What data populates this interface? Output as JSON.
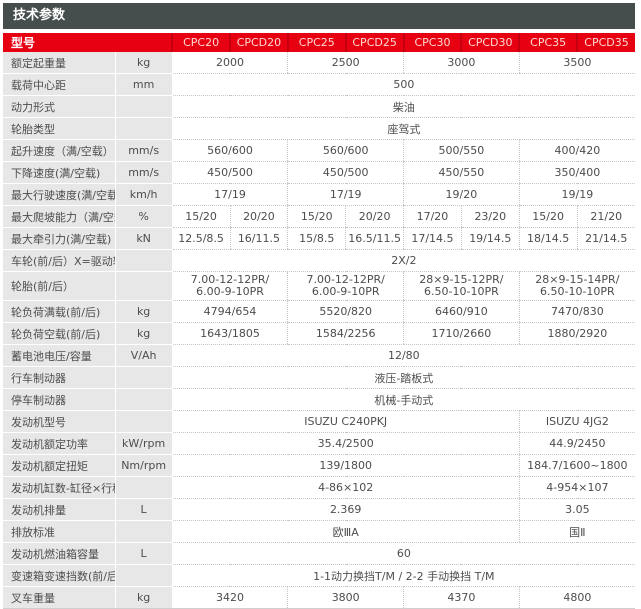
{
  "page": {
    "title": "技术参数"
  },
  "colors": {
    "accent_red": "#e60012",
    "header_dark": "#454d4d",
    "label_bg": "#e7e7e7",
    "model_text": "#ffd9d0"
  },
  "table": {
    "header": {
      "model_label": "型号",
      "models": [
        "CPC20",
        "CPCD20",
        "CPC25",
        "CPCD25",
        "CPC30",
        "CPCD30",
        "CPC35",
        "CPCD35"
      ]
    },
    "rows": [
      {
        "label": "额定起重量",
        "unit": "kg",
        "cells": [
          {
            "text": "2000",
            "span": 2
          },
          {
            "text": "2500",
            "span": 2
          },
          {
            "text": "3000",
            "span": 2
          },
          {
            "text": "3500",
            "span": 2
          }
        ]
      },
      {
        "label": "载荷中心距",
        "unit": "mm",
        "cells": [
          {
            "text": "500",
            "span": 8
          }
        ]
      },
      {
        "label": "动力形式",
        "unit": "",
        "cells": [
          {
            "text": "柴油",
            "span": 8
          }
        ]
      },
      {
        "label": "轮胎类型",
        "unit": "",
        "cells": [
          {
            "text": "座驾式",
            "span": 8
          }
        ]
      },
      {
        "label": "起升速度（满/空载）",
        "unit": "mm/s",
        "cells": [
          {
            "text": "560/600",
            "span": 2
          },
          {
            "text": "560/600",
            "span": 2
          },
          {
            "text": "500/550",
            "span": 2
          },
          {
            "text": "400/420",
            "span": 2
          }
        ]
      },
      {
        "label": "下降速度(满/空载)",
        "unit": "mm/s",
        "cells": [
          {
            "text": "450/500",
            "span": 2
          },
          {
            "text": "450/500",
            "span": 2
          },
          {
            "text": "450/550",
            "span": 2
          },
          {
            "text": "350/400",
            "span": 2
          }
        ]
      },
      {
        "label": "最大行驶速度(满/空载)",
        "unit": "km/h",
        "cells": [
          {
            "text": "17/19",
            "span": 2
          },
          {
            "text": "17/19",
            "span": 2
          },
          {
            "text": "19/20",
            "span": 2
          },
          {
            "text": "19/19",
            "span": 2
          }
        ]
      },
      {
        "label": "最大爬坡能力（满/空载)",
        "unit": "%",
        "cells": [
          {
            "text": "15/20",
            "span": 1
          },
          {
            "text": "20/20",
            "span": 1
          },
          {
            "text": "15/20",
            "span": 1
          },
          {
            "text": "20/20",
            "span": 1
          },
          {
            "text": "17/20",
            "span": 1
          },
          {
            "text": "23/20",
            "span": 1
          },
          {
            "text": "15/20",
            "span": 1
          },
          {
            "text": "21/20",
            "span": 1
          }
        ]
      },
      {
        "label": "最大牵引力(满/空载)",
        "unit": "kN",
        "cells": [
          {
            "text": "12.5/8.5",
            "span": 1
          },
          {
            "text": "16/11.5",
            "span": 1
          },
          {
            "text": "15/8.5",
            "span": 1
          },
          {
            "text": "16.5/11.5",
            "span": 1
          },
          {
            "text": "17/14.5",
            "span": 1
          },
          {
            "text": "19/14.5",
            "span": 1
          },
          {
            "text": "18/14.5",
            "span": 1
          },
          {
            "text": "21/14.5",
            "span": 1
          }
        ]
      },
      {
        "label": "车轮(前/后）X=驱动轮",
        "unit": "",
        "cells": [
          {
            "text": "2X/2",
            "span": 8
          }
        ]
      },
      {
        "label": "轮胎(前/后）",
        "unit": "",
        "cells": [
          {
            "text": "7.00-12-12PR/\n6.00-9-10PR",
            "span": 2
          },
          {
            "text": "7.00-12-12PR/\n6.00-9-10PR",
            "span": 2
          },
          {
            "text": "28×9-15-12PR/\n6.50-10-10PR",
            "span": 2
          },
          {
            "text": "28×9-15-14PR/\n6.50-10-10PR",
            "span": 2
          }
        ]
      },
      {
        "label": "轮负荷满载(前/后)",
        "unit": "kg",
        "cells": [
          {
            "text": "4794/654",
            "span": 2
          },
          {
            "text": "5520/820",
            "span": 2
          },
          {
            "text": "6460/910",
            "span": 2
          },
          {
            "text": "7470/830",
            "span": 2
          }
        ]
      },
      {
        "label": "轮负荷空载(前/后)",
        "unit": "kg",
        "cells": [
          {
            "text": "1643/1805",
            "span": 2
          },
          {
            "text": "1584/2256",
            "span": 2
          },
          {
            "text": "1710/2660",
            "span": 2
          },
          {
            "text": "1880/2920",
            "span": 2
          }
        ]
      },
      {
        "label": "蓄电池电压/容量",
        "unit": "V/Ah",
        "cells": [
          {
            "text": "12/80",
            "span": 8
          }
        ]
      },
      {
        "label": "行车制动器",
        "unit": "",
        "cells": [
          {
            "text": "液压-踏板式",
            "span": 8
          }
        ]
      },
      {
        "label": "停车制动器",
        "unit": "",
        "cells": [
          {
            "text": "机械-手动式",
            "span": 8
          }
        ]
      },
      {
        "label": "发动机型号",
        "unit": "",
        "cells": [
          {
            "text": "ISUZU C240PKJ",
            "span": 6
          },
          {
            "text": "ISUZU 4JG2",
            "span": 2
          }
        ]
      },
      {
        "label": "发动机额定功率",
        "unit": "kW/rpm",
        "cells": [
          {
            "text": "35.4/2500",
            "span": 6
          },
          {
            "text": "44.9/2450",
            "span": 2
          }
        ]
      },
      {
        "label": "发动机额定扭矩",
        "unit": "Nm/rpm",
        "cells": [
          {
            "text": "139/1800",
            "span": 6
          },
          {
            "text": "184.7/1600~1800",
            "span": 2
          }
        ]
      },
      {
        "label": "发动机缸数-缸径×行程",
        "unit": "",
        "cells": [
          {
            "text": "4-86×102",
            "span": 6
          },
          {
            "text": "4-954×107",
            "span": 2
          }
        ]
      },
      {
        "label": "发动机排量",
        "unit": "L",
        "cells": [
          {
            "text": "2.369",
            "span": 6
          },
          {
            "text": "3.05",
            "span": 2
          }
        ]
      },
      {
        "label": "排放标准",
        "unit": "",
        "cells": [
          {
            "text": "欧ⅢA",
            "span": 6
          },
          {
            "text": "国Ⅱ",
            "span": 2
          }
        ]
      },
      {
        "label": "发动机燃油箱容量",
        "unit": "L",
        "cells": [
          {
            "text": "60",
            "span": 8
          }
        ]
      },
      {
        "label": "变速箱变速挡数(前/后 型式)",
        "unit": "",
        "cells": [
          {
            "text": "1-1动力换挡T/M  /  2-2 手动换挡 T/M",
            "span": 8
          }
        ]
      },
      {
        "label": "叉车重量",
        "unit": "kg",
        "cells": [
          {
            "text": "3420",
            "span": 2
          },
          {
            "text": "3800",
            "span": 2
          },
          {
            "text": "4370",
            "span": 2
          },
          {
            "text": "4800",
            "span": 2
          }
        ]
      }
    ]
  }
}
